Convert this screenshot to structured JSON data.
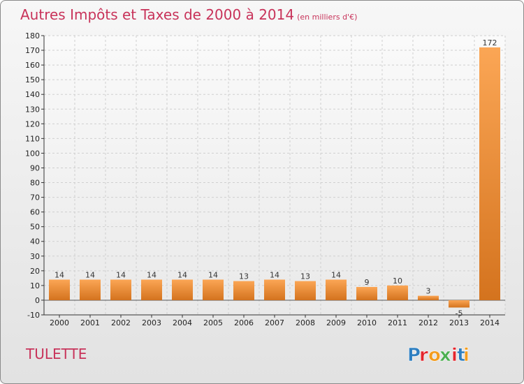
{
  "header": {
    "title": "Autres Impôts et Taxes de 2000 à 2014",
    "subtitle": "(en milliers d'€)"
  },
  "footer": {
    "commune": "TULETTE",
    "logo_text": "Proxiti"
  },
  "colors": {
    "title": "#c8335a",
    "bar_light": "#fba655",
    "bar_dark": "#d4731e",
    "logo_letters": [
      "#2e7fc1",
      "#e3262d",
      "#f39c1d",
      "#4caf50",
      "#e3262d",
      "#2e7fc1",
      "#f39c1d"
    ]
  },
  "chart_data": {
    "type": "bar",
    "title": "Autres Impôts et Taxes de 2000 à 2014",
    "subtitle": "(en milliers d'€)",
    "xlabel": "",
    "ylabel": "",
    "categories": [
      "2000",
      "2001",
      "2002",
      "2003",
      "2004",
      "2005",
      "2006",
      "2007",
      "2008",
      "2009",
      "2010",
      "2011",
      "2012",
      "2013",
      "2014"
    ],
    "values": [
      14,
      14,
      14,
      14,
      14,
      14,
      13,
      14,
      13,
      14,
      9,
      10,
      3,
      -5,
      172
    ],
    "ylim": [
      -10,
      180
    ],
    "yticks": [
      -10,
      0,
      10,
      20,
      30,
      40,
      50,
      60,
      70,
      80,
      90,
      100,
      110,
      120,
      130,
      140,
      150,
      160,
      170,
      180
    ],
    "grid": true,
    "legend": "none"
  }
}
